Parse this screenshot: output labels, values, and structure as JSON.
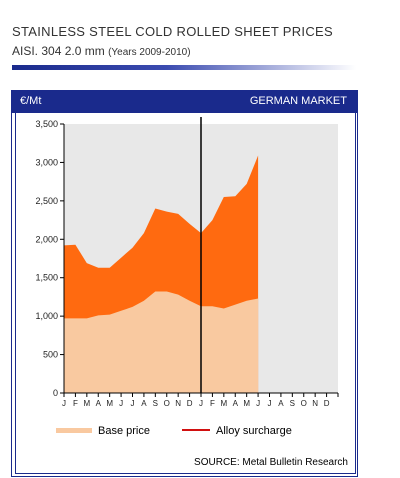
{
  "header": {
    "title": "STAINLESS STEEL COLD ROLLED  SHEET PRICES",
    "subtitle": "AISI. 304 2.0 mm",
    "subtitle_years": "(Years 2009-2010)"
  },
  "panel": {
    "unit_label": "€/Mt",
    "market_label": "GERMAN MARKET",
    "source": "SOURCE: Metal Bulletin Research"
  },
  "colors": {
    "brand_blue": "#1a2a8c",
    "base_price": "#f9c9a0",
    "alloy_surcharge": "#ff6a10",
    "plot_bg": "#e8e8e8",
    "legend_alloy_line": "#d11010"
  },
  "chart_data": {
    "type": "area",
    "stacked": true,
    "x": [
      "J",
      "F",
      "M",
      "A",
      "M",
      "J",
      "J",
      "A",
      "S",
      "O",
      "N",
      "D",
      "J",
      "F",
      "M",
      "A",
      "M",
      "J",
      "J",
      "A",
      "S",
      "O",
      "N",
      "D"
    ],
    "ylim": [
      0,
      3500
    ],
    "yticks": [
      0,
      500,
      1000,
      1500,
      2000,
      2500,
      3000,
      3500
    ],
    "ytick_labels": [
      "0",
      "500",
      "1,000",
      "1,500",
      "2,000",
      "2,500",
      "3,000",
      "3,500"
    ],
    "grid": false,
    "divider_at_index": 12,
    "legend_placement": "bottom",
    "series": [
      {
        "name": "Base price",
        "values": [
          970,
          970,
          970,
          1010,
          1020,
          1070,
          1120,
          1200,
          1320,
          1320,
          1280,
          1200,
          1130,
          1130,
          1100,
          1150,
          1200,
          1230,
          null,
          null,
          null,
          null,
          null,
          null
        ]
      },
      {
        "name": "Alloy surcharge",
        "values": [
          950,
          960,
          720,
          620,
          610,
          690,
          770,
          880,
          1080,
          1040,
          1050,
          1000,
          950,
          1120,
          1450,
          1410,
          1520,
          1860,
          null,
          null,
          null,
          null,
          null,
          null
        ]
      }
    ],
    "total": [
      1920,
      1930,
      1690,
      1630,
      1630,
      1760,
      1890,
      2080,
      2400,
      2360,
      2330,
      2200,
      2080,
      2250,
      2550,
      2560,
      2720,
      3090,
      null,
      null,
      null,
      null,
      null,
      null
    ]
  }
}
